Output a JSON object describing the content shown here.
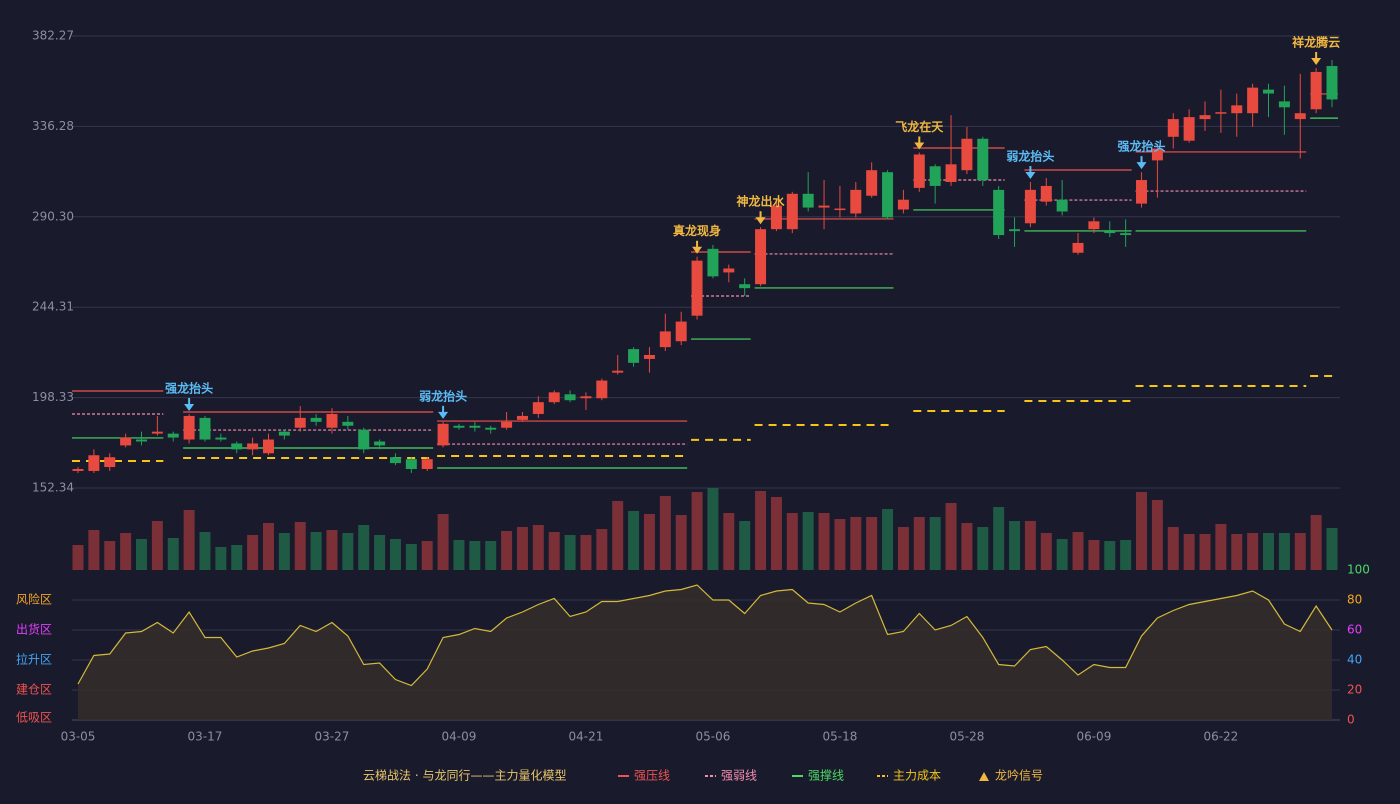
{
  "chart_data": {
    "type": "candlestick",
    "caption": "云梯战法 · 与龙同行——主力量化模型",
    "categories": [
      "03-05",
      null,
      null,
      null,
      null,
      null,
      null,
      null,
      "03-17",
      null,
      null,
      null,
      null,
      null,
      null,
      null,
      "03-27",
      null,
      null,
      null,
      null,
      null,
      null,
      null,
      "04-09",
      null,
      null,
      null,
      null,
      null,
      null,
      null,
      "04-21",
      null,
      null,
      null,
      null,
      null,
      null,
      null,
      "05-06",
      null,
      null,
      null,
      null,
      null,
      null,
      null,
      "05-18",
      null,
      null,
      null,
      null,
      null,
      null,
      null,
      "05-28",
      null,
      null,
      null,
      null,
      null,
      null,
      null,
      "06-09",
      null,
      null,
      null,
      null,
      null,
      null,
      null,
      "06-22",
      null,
      null,
      null,
      null,
      null,
      null,
      null
    ],
    "ylim": [
      152.34,
      382.27
    ],
    "yticks": [
      152.34,
      198.33,
      244.31,
      {
        "value": 290.3,
        "label": "290.30"
      },
      336.28,
      382.27
    ],
    "grid": true,
    "up_color": "#e84a3f",
    "down_color": "#21a35a",
    "open": [
      161,
      161,
      163,
      174,
      177,
      180,
      180,
      177,
      188,
      178,
      175,
      172,
      170,
      181,
      183,
      188,
      183,
      186,
      182,
      176,
      168,
      167,
      162,
      174,
      184,
      184,
      183,
      183,
      187,
      190,
      196,
      200,
      198,
      198,
      211,
      223,
      218,
      224,
      227,
      240,
      274,
      262,
      256,
      256,
      284,
      284,
      302,
      295,
      294,
      292,
      301,
      313,
      294,
      305,
      316,
      308,
      314,
      330,
      304,
      284,
      287,
      298,
      299,
      272,
      284,
      283,
      282,
      297,
      319,
      331,
      329,
      340,
      343,
      343,
      343,
      355,
      349,
      340,
      345,
      367
    ],
    "close": [
      162,
      169,
      168,
      178,
      176,
      181,
      178,
      189,
      177,
      177,
      172,
      175,
      177,
      179,
      188,
      186,
      190,
      184,
      172,
      174,
      165,
      162,
      167,
      185,
      183,
      183,
      182,
      186,
      189,
      196,
      201,
      197,
      199,
      207,
      212,
      216,
      220,
      232,
      237,
      268,
      260,
      264,
      254,
      284,
      296,
      302,
      295,
      296,
      294.5,
      304,
      314,
      290,
      299,
      322,
      306,
      317,
      330,
      309,
      281,
      283,
      304,
      306,
      293,
      277,
      288,
      282,
      281,
      309,
      325,
      340,
      341,
      342,
      343.5,
      347,
      356,
      353,
      346,
      343,
      364,
      350
    ],
    "high": [
      163,
      172,
      170,
      180,
      181,
      189,
      181,
      190,
      189,
      180,
      176,
      178,
      180,
      182,
      194,
      190,
      193,
      189,
      183,
      177,
      170,
      168,
      168,
      186,
      185,
      186,
      184,
      191,
      191,
      199,
      202,
      202,
      201,
      208,
      220,
      224,
      224,
      241,
      242,
      270,
      276,
      266,
      259,
      285,
      298,
      303,
      313,
      309,
      306,
      308,
      318,
      314,
      304,
      323,
      317,
      342,
      336,
      331,
      306,
      290,
      308,
      310,
      309,
      282,
      290,
      288,
      289,
      313,
      327,
      343,
      345,
      349,
      355,
      353,
      358,
      358,
      357,
      363,
      366,
      370
    ],
    "low": [
      160,
      160,
      161,
      173,
      174,
      179,
      176,
      175,
      176,
      176,
      170,
      169,
      169,
      177,
      181,
      184,
      180,
      182,
      170,
      172,
      164,
      160,
      161,
      173,
      182,
      181,
      180,
      182,
      186,
      188,
      195,
      196,
      192,
      197,
      210,
      214,
      211,
      222,
      225,
      238,
      259,
      257,
      250,
      255,
      283,
      282,
      293,
      284,
      290,
      290,
      300,
      289,
      292,
      303,
      297,
      306,
      312,
      306,
      279,
      275,
      285,
      296,
      291,
      271,
      282,
      280,
      275,
      295,
      300,
      325,
      328,
      334,
      333,
      331,
      336,
      341,
      332,
      320,
      343,
      346
    ],
    "volume": [
      25,
      40,
      29,
      37,
      31,
      49,
      32,
      60,
      38,
      23,
      25,
      35,
      47,
      37,
      48,
      38,
      40,
      37,
      45,
      35,
      31,
      26,
      29,
      56,
      30,
      29,
      29,
      39,
      43,
      45,
      38,
      35,
      35,
      41,
      69,
      59,
      56,
      74,
      55,
      78,
      82,
      57,
      49,
      79,
      73,
      57,
      58,
      57,
      51,
      53,
      53,
      61,
      43,
      53,
      53,
      67,
      47,
      43,
      63,
      49,
      49,
      37,
      31,
      38,
      30,
      29,
      30,
      78,
      70,
      43,
      36,
      36,
      46,
      36,
      37,
      37,
      37,
      37,
      55,
      42
    ],
    "levels": [
      {
        "name": "强压线",
        "color": "#ef5350",
        "style": "solid",
        "segments": [
          {
            "start": 0,
            "end": 5,
            "value": 201.7
          },
          {
            "start": 7,
            "end": 22,
            "value": 191.0
          },
          {
            "start": 23,
            "end": 38,
            "value": 186.4
          },
          {
            "start": 39,
            "end": 42,
            "value": 272.4
          },
          {
            "start": 43,
            "end": 51,
            "value": 289.2
          },
          {
            "start": 53,
            "end": 58,
            "value": 325.3
          },
          {
            "start": 60,
            "end": 66,
            "value": 314.1
          },
          {
            "start": 67,
            "end": 77,
            "value": 323.3
          },
          {
            "start": 78,
            "end": 79,
            "value": 352.8
          }
        ]
      },
      {
        "name": "强弱线",
        "color": "#f48fb1",
        "style": "dashed",
        "segments": [
          {
            "start": 0,
            "end": 5,
            "value": 190.0
          },
          {
            "start": 7,
            "end": 22,
            "value": 181.8
          },
          {
            "start": 23,
            "end": 38,
            "value": 174.7
          },
          {
            "start": 39,
            "end": 42,
            "value": 250.0
          },
          {
            "start": 43,
            "end": 51,
            "value": 271.4
          },
          {
            "start": 53,
            "end": 58,
            "value": 309.0
          },
          {
            "start": 60,
            "end": 66,
            "value": 298.8
          },
          {
            "start": 67,
            "end": 77,
            "value": 303.4
          }
        ]
      },
      {
        "name": "强撑线",
        "color": "#4cd964",
        "style": "solid",
        "segments": [
          {
            "start": 0,
            "end": 5,
            "value": 177.8
          },
          {
            "start": 7,
            "end": 22,
            "value": 172.7
          },
          {
            "start": 23,
            "end": 38,
            "value": 162.5
          },
          {
            "start": 39,
            "end": 42,
            "value": 228.1
          },
          {
            "start": 43,
            "end": 51,
            "value": 254.1
          },
          {
            "start": 53,
            "end": 58,
            "value": 293.8
          },
          {
            "start": 60,
            "end": 66,
            "value": 283.1
          },
          {
            "start": 67,
            "end": 77,
            "value": 283.1
          },
          {
            "start": 78,
            "end": 79,
            "value": 340.5
          }
        ]
      },
      {
        "name": "主力成本",
        "color": "#f5c518",
        "style": "longdash",
        "segments": [
          {
            "start": 0,
            "end": 5,
            "value": 166.1
          },
          {
            "start": 7,
            "end": 22,
            "value": 167.6
          },
          {
            "start": 23,
            "end": 38,
            "value": 168.6
          },
          {
            "start": 39,
            "end": 42,
            "value": 176.8
          },
          {
            "start": 43,
            "end": 51,
            "value": 184.4
          },
          {
            "start": 53,
            "end": 58,
            "value": 191.5
          },
          {
            "start": 60,
            "end": 66,
            "value": 196.6
          },
          {
            "start": 67,
            "end": 77,
            "value": 204.2
          },
          {
            "start": 78,
            "end": 79,
            "value": 209.3
          }
        ]
      }
    ],
    "signal_legend": {
      "name": "龙吟信号",
      "color": "#f0b840"
    },
    "signals": [
      {
        "index": 7,
        "label": "强龙抬头",
        "color": "#5bbcf5"
      },
      {
        "index": 23,
        "label": "弱龙抬头",
        "color": "#5bbcf5"
      },
      {
        "index": 39,
        "label": "真龙现身",
        "color": "#f0b840"
      },
      {
        "index": 43,
        "label": "神龙出水",
        "color": "#f0b840"
      },
      {
        "index": 53,
        "label": "飞龙在天",
        "color": "#f0b840"
      },
      {
        "index": 60,
        "label": "弱龙抬头",
        "color": "#5bbcf5"
      },
      {
        "index": 67,
        "label": "强龙抬头",
        "color": "#5bbcf5"
      },
      {
        "index": 78,
        "label": "祥龙腾云",
        "color": "#f0b840"
      }
    ],
    "indicator": {
      "color": "#d4b93a",
      "values": [
        24,
        43,
        44,
        58,
        59,
        65,
        58,
        72,
        55,
        55,
        42,
        46,
        48,
        51,
        63,
        59,
        65,
        56,
        37,
        38,
        27,
        23,
        34,
        55,
        57,
        61,
        59,
        68,
        72,
        77,
        81,
        69,
        72,
        79,
        79,
        81,
        83,
        86,
        87,
        90,
        80,
        80,
        71,
        83,
        86,
        87,
        78,
        77,
        72,
        78,
        83,
        57,
        59,
        71,
        60,
        63,
        69,
        55,
        37,
        36,
        47,
        49,
        40,
        30,
        37,
        35,
        35,
        56,
        68,
        73,
        77,
        79,
        81,
        83,
        86,
        80,
        64,
        59,
        76,
        60
      ],
      "ylim": [
        0,
        100
      ],
      "yticks": [
        0,
        20,
        40,
        60,
        80,
        100
      ],
      "ytick_colors": [
        "#ef5350",
        "#ef5350",
        "#42a5f5",
        "#e040fb",
        "#f5a623",
        "#4cd964"
      ],
      "zones": [
        {
          "label": "风险区",
          "at": 80,
          "color": "#f5a623"
        },
        {
          "label": "出货区",
          "at": 60,
          "color": "#e040fb"
        },
        {
          "label": "拉升区",
          "at": 40,
          "color": "#42a5f5"
        },
        {
          "label": "建仓区",
          "at": 20,
          "color": "#ef5350"
        },
        {
          "label": "低吸区",
          "at": 0,
          "color": "#ef5350"
        }
      ]
    }
  }
}
